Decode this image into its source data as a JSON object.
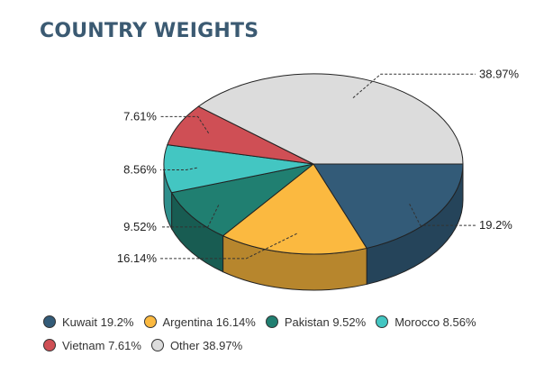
{
  "title": "COUNTRY WEIGHTS",
  "chart_data": {
    "type": "pie",
    "style": "3d",
    "title": "COUNTRY WEIGHTS",
    "slices": [
      {
        "label": "Kuwait",
        "value": 19.2,
        "value_label": "19.2%",
        "legend": "Kuwait 19.2%",
        "color": "#335b78",
        "side_color": "#25445a"
      },
      {
        "label": "Argentina",
        "value": 16.14,
        "value_label": "16.14%",
        "legend": "Argentina 16.14%",
        "color": "#fbb940",
        "side_color": "#b7862d"
      },
      {
        "label": "Pakistan",
        "value": 9.52,
        "value_label": "9.52%",
        "legend": "Pakistan 9.52%",
        "color": "#207f71",
        "side_color": "#185c52"
      },
      {
        "label": "Morocco",
        "value": 8.56,
        "value_label": "8.56%",
        "legend": "Morocco 8.56%",
        "color": "#43c6c2",
        "side_color": "#2f8f8c"
      },
      {
        "label": "Vietnam",
        "value": 7.61,
        "value_label": "7.61%",
        "legend": "Vietnam 7.61%",
        "color": "#cf4f55",
        "side_color": "#95393d"
      },
      {
        "label": "Other",
        "value": 38.97,
        "value_label": "38.97%",
        "legend": "Other 38.97%",
        "color": "#dcdcdc",
        "side_color": "#a9a9a9"
      }
    ],
    "legend_position": "bottom"
  }
}
